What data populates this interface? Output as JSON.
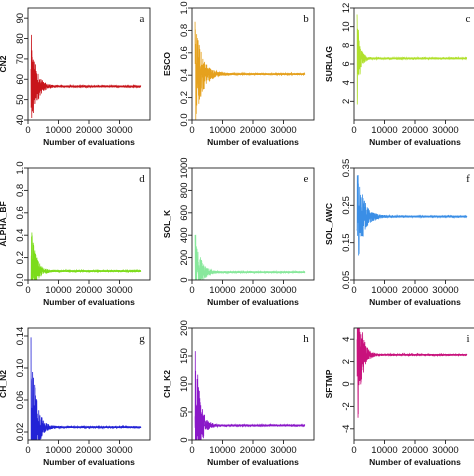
{
  "chart_data": [
    {
      "panel": "a",
      "type": "line",
      "ylabel": "CN2",
      "xlabel": "Number of evaluations",
      "color": "#c8151b",
      "xlim": [
        0,
        40000
      ],
      "ylim": [
        40,
        95
      ],
      "xticks": [
        0,
        10000,
        20000,
        30000
      ],
      "yticks": [
        40,
        50,
        60,
        70,
        80,
        90
      ],
      "converged": 56.5,
      "amp_start": 27,
      "decay": 1600
    },
    {
      "panel": "b",
      "type": "line",
      "ylabel": "ESCO",
      "xlabel": "Number of evaluations",
      "color": "#e5a11e",
      "xlim": [
        0,
        40000
      ],
      "ylim": [
        0,
        1
      ],
      "xticks": [
        0,
        10000,
        20000,
        30000
      ],
      "yticks": [
        0,
        0.2,
        0.4,
        0.6,
        0.8,
        1.0
      ],
      "converged": 0.41,
      "amp_start": 0.5,
      "decay": 2200
    },
    {
      "panel": "c",
      "type": "line",
      "ylabel": "SURLAG",
      "xlabel": "Number of evaluations",
      "color": "#b0e02c",
      "xlim": [
        0,
        40000
      ],
      "ylim": [
        0,
        12
      ],
      "xticks": [
        0,
        10000,
        20000,
        30000
      ],
      "yticks": [
        2,
        4,
        6,
        8,
        10,
        12
      ],
      "converged": 6.6,
      "amp_start": 5.5,
      "decay": 900
    },
    {
      "panel": "d",
      "type": "line",
      "ylabel": "ALPHA_BF",
      "xlabel": "Number of evaluations",
      "color": "#7cdc1a",
      "xlim": [
        0,
        40000
      ],
      "ylim": [
        0,
        1
      ],
      "xticks": [
        0,
        10000,
        20000,
        30000
      ],
      "yticks": [
        0,
        0.2,
        0.4,
        0.6,
        0.8,
        1.0
      ],
      "converged": 0.08,
      "amp_start": 0.45,
      "decay": 1400
    },
    {
      "panel": "e",
      "type": "line",
      "ylabel": "SOL_K",
      "xlabel": "Number of evaluations",
      "color": "#88e89c",
      "xlim": [
        0,
        40000
      ],
      "ylim": [
        0,
        1000
      ],
      "xticks": [
        0,
        10000,
        20000,
        30000
      ],
      "yticks": [
        0,
        200,
        400,
        600,
        800,
        1000
      ],
      "converged": 70,
      "amp_start": 400,
      "decay": 1600
    },
    {
      "panel": "f",
      "type": "line",
      "ylabel": "SOL_AWC",
      "xlabel": "Number of evaluations",
      "color": "#3a8ee6",
      "xlim": [
        0,
        40000
      ],
      "ylim": [
        0.05,
        0.35
      ],
      "xticks": [
        0,
        10000,
        20000,
        30000
      ],
      "yticks": [
        0.05,
        0.15,
        0.25,
        0.35
      ],
      "converged": 0.22,
      "amp_start": 0.14,
      "decay": 2000
    },
    {
      "panel": "g",
      "type": "line",
      "ylabel": "CH_N2",
      "xlabel": "Number of evaluations",
      "color": "#2323d6",
      "xlim": [
        0,
        40000
      ],
      "ylim": [
        0.01,
        0.15
      ],
      "xticks": [
        0,
        10000,
        20000,
        30000
      ],
      "yticks": [
        0.02,
        0.06,
        0.1,
        0.14
      ],
      "converged": 0.026,
      "amp_start": 0.12,
      "decay": 1500
    },
    {
      "panel": "h",
      "type": "line",
      "ylabel": "CH_K2",
      "xlabel": "Number of evaluations",
      "color": "#8a18c8",
      "xlim": [
        0,
        40000
      ],
      "ylim": [
        0,
        200
      ],
      "xticks": [
        0,
        10000,
        20000,
        30000
      ],
      "yticks": [
        0,
        50,
        100,
        150,
        200
      ],
      "converged": 26,
      "amp_start": 170,
      "decay": 1400
    },
    {
      "panel": "i",
      "type": "line",
      "ylabel": "SFTMP",
      "xlabel": "Number of evaluations",
      "color": "#c8127c",
      "xlim": [
        0,
        40000
      ],
      "ylim": [
        -5,
        5
      ],
      "xticks": [
        0,
        10000,
        20000,
        30000
      ],
      "yticks": [
        -4,
        -2,
        0,
        2,
        4
      ],
      "converged": 2.6,
      "amp_start": 7,
      "decay": 1400
    }
  ]
}
